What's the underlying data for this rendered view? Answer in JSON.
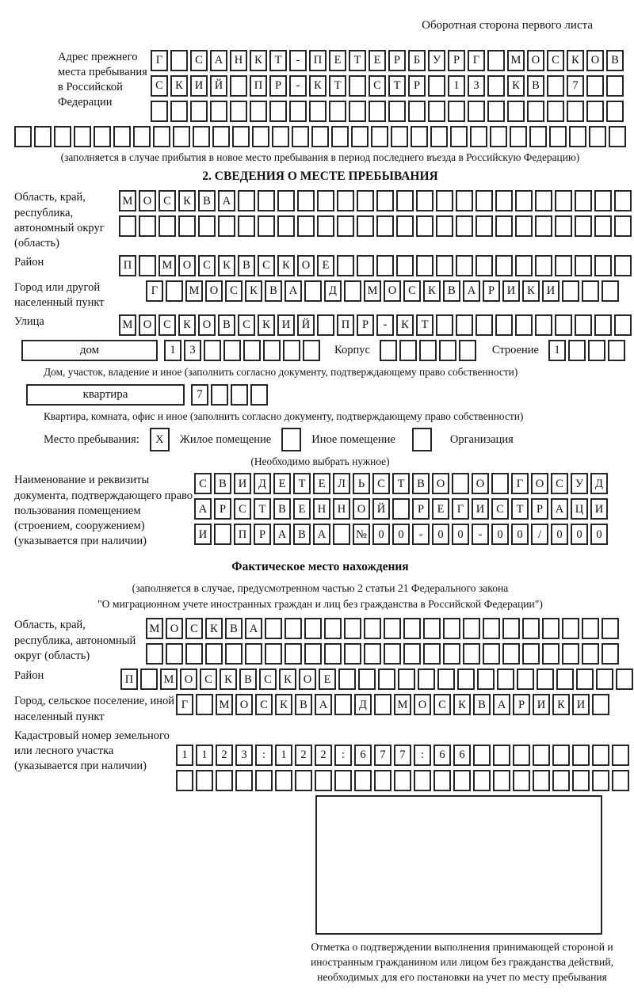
{
  "header": {
    "note": "Оборотная сторона первого листа"
  },
  "prev_address": {
    "label": "Адрес прежнего места пребывания в Российской Федерации",
    "row1": {
      "chars": "Г САНКТ-ПЕТЕРБУРГ МОСКОВ",
      "count": 24
    },
    "row2": {
      "chars": "СКИЙ ПР-КТ СТР 13 КВ 7",
      "count": 24
    },
    "row3": {
      "chars": "",
      "count": 24
    },
    "row4": {
      "chars": "",
      "count": 31
    },
    "note": "(заполняется в случае прибытия в новое место пребывания в период последнего въезда в Российскую Федерацию)"
  },
  "section2": {
    "title": "2. СВЕДЕНИЯ О МЕСТЕ ПРЕБЫВАНИЯ",
    "region": {
      "label": "Область, край, республика, автономный округ (область)",
      "row1": {
        "chars": "МОСКВА",
        "count": 26
      },
      "row2": {
        "chars": "",
        "count": 26
      }
    },
    "district": {
      "label": "Район",
      "row": {
        "chars": "П МОСКВСКОЕ",
        "count": 26
      }
    },
    "city": {
      "label": "Город или другой населенный пункт",
      "row": {
        "chars": "Г МОСКВА Д МОСКВАРИКИ",
        "count": 24
      }
    },
    "street": {
      "label": "Улица",
      "row": {
        "chars": "МОСКОВСКИЙ ПР-КТ",
        "count": 26
      }
    },
    "house": {
      "type_label": "дом",
      "number": {
        "chars": "13",
        "count": 8
      },
      "korpus_label": "Корпус",
      "korpus": {
        "chars": "",
        "count": 5
      },
      "stroenie_label": "Строение",
      "stroenie": {
        "chars": "1",
        "count": 4
      },
      "caption": "Дом, участок, владение и иное (заполнить согласно документу, подтверждающему право собственности)"
    },
    "apartment": {
      "type_label": "квартира",
      "number": {
        "chars": "7",
        "count": 4
      },
      "caption": "Квартира, комната, офис и иное (заполнить согласно документу, подтверждающему право собственности)"
    },
    "stay_type": {
      "label": "Место пребывания:",
      "note": "(Необходимо выбрать нужное)",
      "options": [
        {
          "label": "Жилое помещение",
          "box": {
            "chars": "X",
            "count": 1
          }
        },
        {
          "label": "Иное помещение",
          "box": {
            "chars": "",
            "count": 1
          }
        },
        {
          "label": "Организация",
          "box": {
            "chars": "",
            "count": 1
          }
        }
      ]
    },
    "document": {
      "label": "Наименование и реквизиты документа, подтверждающего право пользования помещением (строением, сооружением) (указывается при наличии)",
      "row1": {
        "chars": "СВИДЕТЕЛЬСТВО О ГОСУД",
        "count": 21
      },
      "row2": {
        "chars": "АРСТВЕННОЙ РЕГИСТРАЦИ",
        "count": 21
      },
      "row3": {
        "chars": "И ПРАВА №00-00-00/000",
        "count": 21
      }
    }
  },
  "actual_location": {
    "title": "Фактическое место нахождения",
    "note_line1": "(заполняется в случае, предусмотренном частью 2 статьи 21 Федерального закона",
    "note_line2": "\"О миграционном учете иностранных граждан и лиц без гражданства в Российской Федерации\")",
    "region": {
      "label": "Область, край, республика, автономный округ (область)",
      "row1": {
        "chars": "МОСКВА",
        "count": 24
      },
      "row2": {
        "chars": "",
        "count": 24
      }
    },
    "district": {
      "label": "Район",
      "row": {
        "chars": "П МОСКВСКОЕ",
        "count": 26
      }
    },
    "city": {
      "label": "Город, сельское поселение, иной населенный пункт",
      "row": {
        "chars": "Г МОСКВА Д МОСКВАРИКИ",
        "count": 22
      }
    },
    "cadastral": {
      "label": "Кадастровый номер земельного или лесного участка (указывается при наличии)",
      "row1": {
        "chars": "1123:122:677:66",
        "count": 23
      },
      "row2": {
        "chars": "",
        "count": 23
      }
    },
    "stamp_caption": "Отметка о подтверждении выполнения принимающей стороной и иностранным гражданином или лицом без гражданства действий, необходимых для его постановки на учет по месту пребывания"
  }
}
